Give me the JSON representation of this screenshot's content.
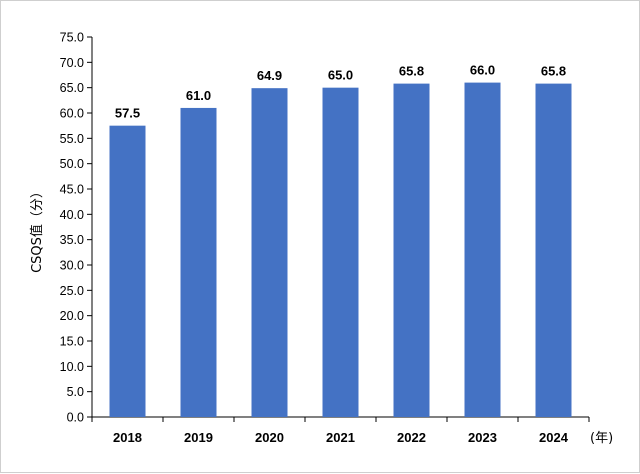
{
  "chart_data": {
    "type": "bar",
    "categories": [
      "2018",
      "2019",
      "2020",
      "2021",
      "2022",
      "2023",
      "2024"
    ],
    "values": [
      57.5,
      61.0,
      64.9,
      65.0,
      65.8,
      66.0,
      65.8
    ],
    "data_labels": [
      "57.5",
      "61.0",
      "64.9",
      "65.0",
      "65.8",
      "66.0",
      "65.8"
    ],
    "ylabel": "CSQS值（分）",
    "x_unit": "(年)",
    "ylim": [
      0,
      75
    ],
    "ytick_step": 5,
    "ytick_labels": [
      "0.0",
      "5.0",
      "10.0",
      "15.0",
      "20.0",
      "25.0",
      "30.0",
      "35.0",
      "40.0",
      "45.0",
      "50.0",
      "55.0",
      "60.0",
      "65.0",
      "70.0",
      "75.0"
    ],
    "bar_color": "#4472c4",
    "grid": false,
    "legend": "none"
  }
}
